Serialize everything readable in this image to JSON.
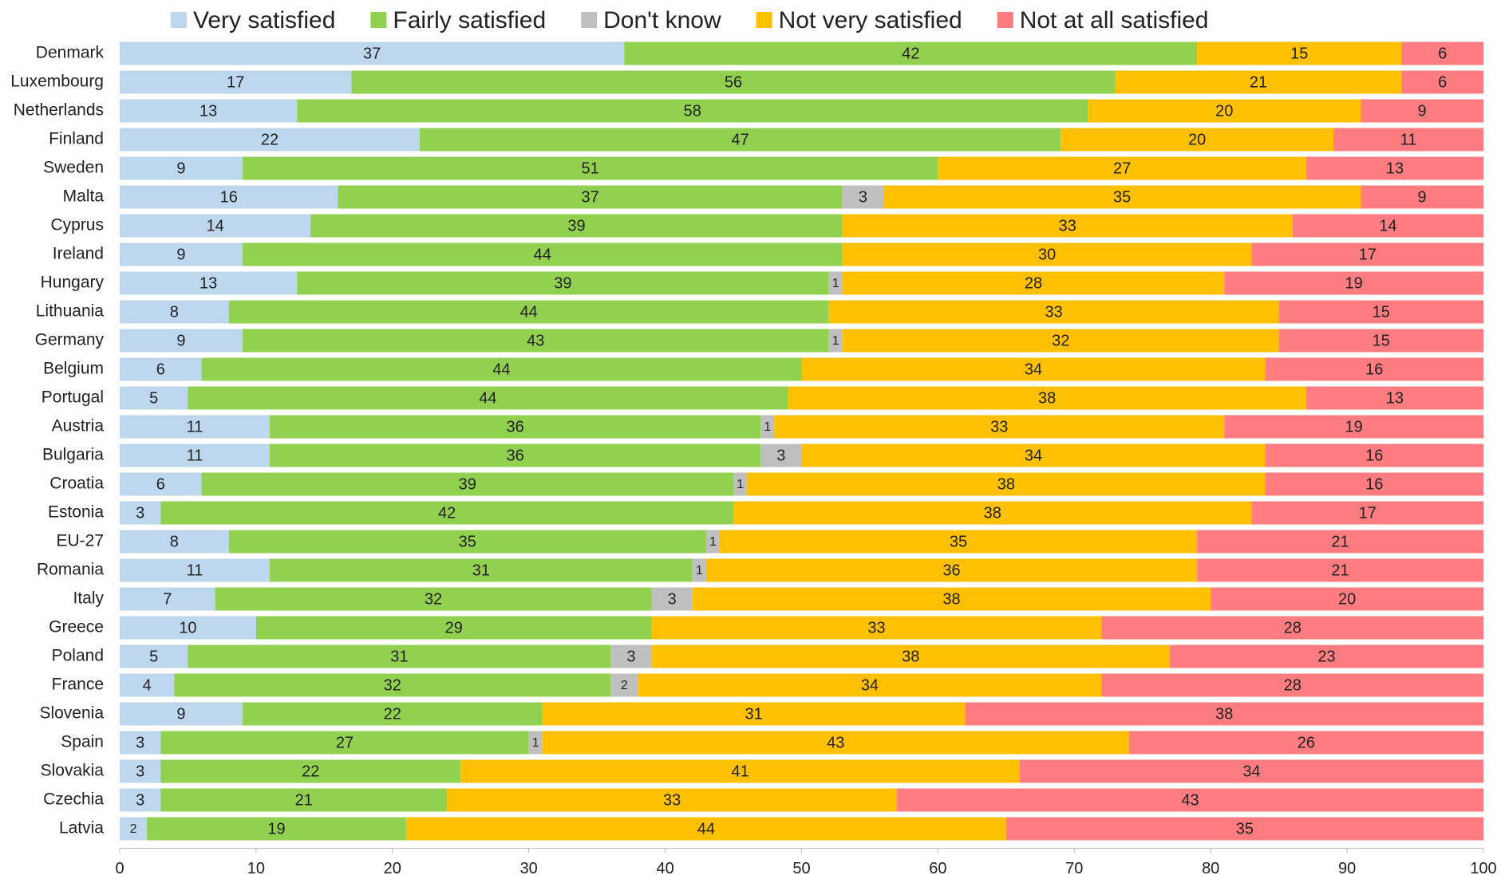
{
  "chart_data": {
    "type": "stacked-bar-horizontal",
    "categories": [
      "Denmark",
      "Luxembourg",
      "Netherlands",
      "Finland",
      "Sweden",
      "Malta",
      "Cyprus",
      "Ireland",
      "Hungary",
      "Lithuania",
      "Germany",
      "Belgium",
      "Portugal",
      "Austria",
      "Bulgaria",
      "Croatia",
      "Estonia",
      "EU-27",
      "Romania",
      "Italy",
      "Greece",
      "Poland",
      "France",
      "Slovenia",
      "Spain",
      "Slovakia",
      "Czechia",
      "Latvia"
    ],
    "series": [
      {
        "name": "Very satisfied",
        "color": "#bdd7ee",
        "values": [
          37,
          17,
          13,
          22,
          9,
          16,
          14,
          9,
          13,
          8,
          9,
          6,
          5,
          11,
          11,
          6,
          3,
          8,
          11,
          7,
          10,
          5,
          4,
          9,
          3,
          3,
          3,
          2
        ]
      },
      {
        "name": "Fairly satisfied",
        "color": "#92d050",
        "values": [
          42,
          56,
          58,
          47,
          51,
          37,
          39,
          44,
          39,
          44,
          43,
          44,
          44,
          36,
          36,
          39,
          42,
          35,
          31,
          32,
          29,
          31,
          32,
          22,
          27,
          22,
          21,
          19
        ]
      },
      {
        "name": "Don't know",
        "color": "#bfbfbf",
        "values": [
          null,
          null,
          null,
          null,
          null,
          3,
          null,
          null,
          1,
          null,
          1,
          null,
          null,
          1,
          3,
          1,
          null,
          1,
          1,
          3,
          null,
          3,
          2,
          null,
          1,
          null,
          null,
          null
        ]
      },
      {
        "name": "Not very satisfied",
        "color": "#ffc000",
        "values": [
          15,
          21,
          20,
          20,
          27,
          35,
          33,
          30,
          28,
          33,
          32,
          34,
          38,
          33,
          34,
          38,
          38,
          35,
          36,
          38,
          33,
          38,
          34,
          31,
          43,
          41,
          33,
          44
        ]
      },
      {
        "name": "Not at all satisfied",
        "color": "#ff7c80",
        "values": [
          6,
          6,
          9,
          11,
          13,
          9,
          14,
          17,
          19,
          15,
          15,
          16,
          13,
          19,
          16,
          16,
          17,
          21,
          21,
          20,
          28,
          23,
          28,
          38,
          26,
          34,
          43,
          35
        ]
      }
    ],
    "xlim": [
      0,
      100
    ],
    "xticks": [
      0,
      10,
      20,
      30,
      40,
      50,
      60,
      70,
      80,
      90,
      100
    ],
    "legend": "top"
  }
}
